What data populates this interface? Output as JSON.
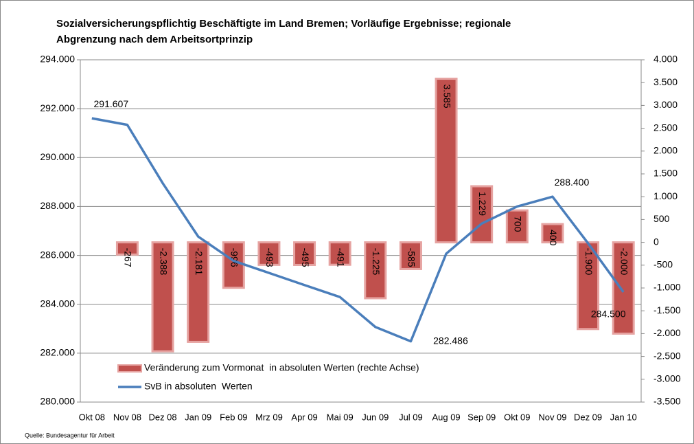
{
  "chart_data": {
    "type": "bar_line",
    "title": [
      "Sozialversicherungspflichtig Beschäftigte im Land Bremen; Vorläufige Ergebnisse; regionale",
      "Abgrenzung nach dem Arbeitsortprinzip"
    ],
    "source": "Quelle: Bundesagentur für Arbeit",
    "categories": [
      "Okt 08",
      "Nov 08",
      "Dez 08",
      "Jan 09",
      "Feb 09",
      "Mrz 09",
      "Apr 09",
      "Mai 09",
      "Jun 09",
      "Jul 09",
      "Aug 09",
      "Sep 09",
      "Okt 09",
      "Nov 09",
      "Dez 09",
      "Jan 10"
    ],
    "series": [
      {
        "name": "Veränderung zum Vormonat  in absoluten Werten (rechte Achse)",
        "type": "bar",
        "axis": "y2",
        "color": "#c0504d",
        "values": [
          null,
          -267,
          -2388,
          -2181,
          -996,
          -493,
          -495,
          -491,
          -1225,
          -585,
          3585,
          1229,
          700,
          400,
          -1900,
          -2000
        ],
        "value_labels": [
          null,
          "-267",
          "-2.388",
          "-2.181",
          "-996",
          "-493",
          "-495",
          "-491",
          "-1.225",
          "-585",
          "3.585",
          "1.229",
          "700",
          "400",
          "-1.900",
          "-2.000"
        ]
      },
      {
        "name": "SvB in absoluten  Werten",
        "type": "line",
        "axis": "y",
        "color": "#4a7ebb",
        "values": [
          291607,
          291340,
          288952,
          286771,
          285775,
          285282,
          284787,
          284296,
          283071,
          282486,
          286071,
          287300,
          288000,
          288400,
          286500,
          284500
        ],
        "value_labels": [
          "291.607",
          null,
          null,
          null,
          null,
          null,
          null,
          null,
          null,
          "282.486",
          null,
          null,
          null,
          "288.400",
          null,
          "284.500"
        ]
      }
    ],
    "ylim": [
      280000,
      294000
    ],
    "yticks": [
      {
        "value": 280000,
        "label": "280.000"
      },
      {
        "value": 282000,
        "label": "282.000"
      },
      {
        "value": 284000,
        "label": "284.000"
      },
      {
        "value": 286000,
        "label": "286.000"
      },
      {
        "value": 288000,
        "label": "288.000"
      },
      {
        "value": 290000,
        "label": "290.000"
      },
      {
        "value": 292000,
        "label": "292.000"
      },
      {
        "value": 294000,
        "label": "294.000"
      }
    ],
    "y2lim": [
      -3500,
      4000
    ],
    "y2ticks": [
      {
        "value": -3500,
        "label": "-3.500"
      },
      {
        "value": -3000,
        "label": "-3.000"
      },
      {
        "value": -2500,
        "label": "-2.500"
      },
      {
        "value": -2000,
        "label": "-2.000"
      },
      {
        "value": -1500,
        "label": "-1.500"
      },
      {
        "value": -1000,
        "label": "-1.000"
      },
      -500,
      0,
      500,
      {
        "value": 1000,
        "label": "1.000"
      },
      {
        "value": 1500,
        "label": "1.500"
      },
      {
        "value": 2000,
        "label": "2.000"
      },
      {
        "value": 2500,
        "label": "2.500"
      },
      {
        "value": 3000,
        "label": "3.000"
      },
      {
        "value": 3500,
        "label": "3.500"
      },
      {
        "value": 4000,
        "label": "4.000"
      }
    ],
    "grid": true
  }
}
